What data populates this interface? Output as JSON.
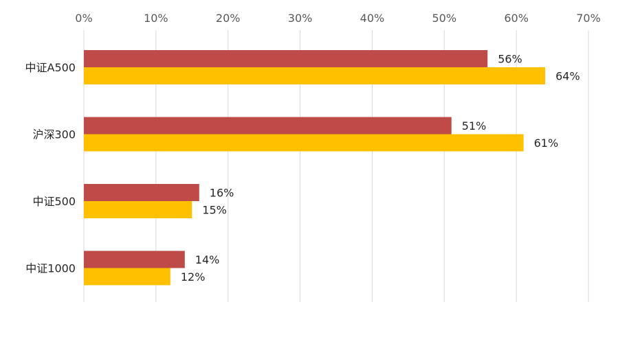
{
  "chart_data": {
    "type": "bar",
    "orientation": "horizontal",
    "categories": [
      "中证A500",
      "沪深300",
      "中证500",
      "中证1000"
    ],
    "series": [
      {
        "values": [
          56,
          51,
          16,
          14
        ],
        "labels": [
          "56%",
          "51%",
          "16%",
          "14%"
        ],
        "color": "#be4b48"
      },
      {
        "values": [
          64,
          61,
          15,
          12
        ],
        "labels": [
          "64%",
          "61%",
          "15%",
          "12%"
        ],
        "color": "#ffc000"
      }
    ],
    "x_ticks": [
      0,
      10,
      20,
      30,
      40,
      50,
      60,
      70
    ],
    "x_tick_labels": [
      "0%",
      "10%",
      "20%",
      "30%",
      "40%",
      "50%",
      "60%",
      "70%"
    ],
    "xlim": [
      0,
      70
    ],
    "x_axis_position": "top",
    "grid": true,
    "legend": "none"
  }
}
